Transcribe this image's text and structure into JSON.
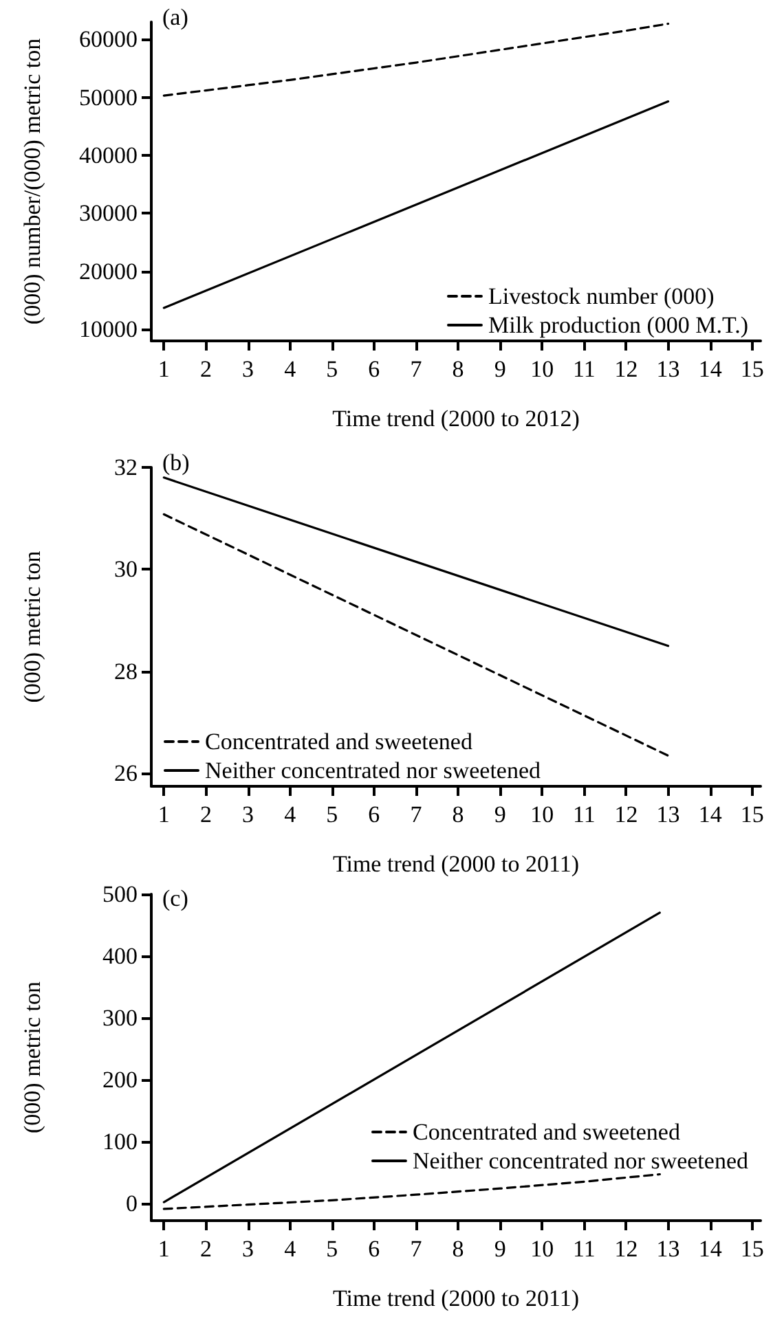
{
  "chart_data": [
    {
      "type": "line",
      "xlabel": "Time trend (2000 to 2012)",
      "ylabel": "(000) number/(000) metric ton",
      "annotations": [
        "(a)"
      ],
      "x": [
        1,
        2,
        3,
        4,
        5,
        6,
        7,
        8,
        9,
        10,
        11,
        12,
        13
      ],
      "xlim": [
        0.7,
        15.2
      ],
      "xticks": [
        1,
        2,
        3,
        4,
        5,
        6,
        7,
        8,
        9,
        10,
        11,
        12,
        13,
        14,
        15
      ],
      "ylim": [
        8000,
        63000
      ],
      "yticks": [
        10000,
        20000,
        30000,
        40000,
        50000,
        60000
      ],
      "grid": false,
      "legend": "bottom right",
      "marker": "none",
      "series": [
        {
          "name": "Livestock number (000)",
          "color": "#000000",
          "line_style": "dashed",
          "values": [
            50300,
            51200,
            52100,
            53000,
            54000,
            55000,
            56000,
            57100,
            58200,
            59300,
            60400,
            61500,
            62700
          ]
        },
        {
          "name": "Milk production (000 M.T.)",
          "color": "#000000",
          "line_style": "solid",
          "x": [
            1,
            13
          ],
          "values": [
            13700,
            49300
          ]
        }
      ]
    },
    {
      "type": "line",
      "xlabel": "Time trend (2000 to 2011)",
      "ylabel": "(000) metric ton",
      "annotations": [
        "(b)"
      ],
      "xlim": [
        0.7,
        15.2
      ],
      "xticks": [
        1,
        2,
        3,
        4,
        5,
        6,
        7,
        8,
        9,
        10,
        11,
        12,
        13,
        14,
        15
      ],
      "ylim": [
        25.75,
        32
      ],
      "yticks": [
        26,
        28,
        30,
        32
      ],
      "grid": false,
      "legend": "bottom left",
      "marker": "none",
      "series": [
        {
          "name": "Concentrated and sweetened",
          "color": "#000000",
          "line_style": "dashed",
          "x": [
            1,
            13
          ],
          "values": [
            31.08,
            26.35
          ]
        },
        {
          "name": "Neither concentrated nor sweetened",
          "color": "#000000",
          "line_style": "solid",
          "x": [
            1,
            13
          ],
          "values": [
            31.8,
            28.5
          ]
        }
      ]
    },
    {
      "type": "line",
      "xlabel": "Time trend (2000 to 2011)",
      "ylabel": "(000) metric ton",
      "annotations": [
        "(c)"
      ],
      "xlim": [
        0.7,
        15.2
      ],
      "xticks": [
        1,
        2,
        3,
        4,
        5,
        6,
        7,
        8,
        9,
        10,
        11,
        12,
        13,
        14,
        15
      ],
      "ylim": [
        -28,
        500
      ],
      "yticks": [
        0,
        100,
        200,
        300,
        400,
        500
      ],
      "grid": false,
      "legend": "right",
      "marker": "none",
      "series": [
        {
          "name": "Concentrated and sweetened",
          "color": "#000000",
          "line_style": "dashed",
          "x": [
            1,
            3,
            5,
            7,
            9,
            11,
            12.8
          ],
          "values": [
            -9,
            -2,
            5,
            14,
            24,
            35,
            47
          ]
        },
        {
          "name": "Neither concentrated nor sweetened",
          "color": "#000000",
          "line_style": "solid",
          "x": [
            1,
            12.8
          ],
          "values": [
            2,
            470
          ]
        }
      ]
    }
  ]
}
